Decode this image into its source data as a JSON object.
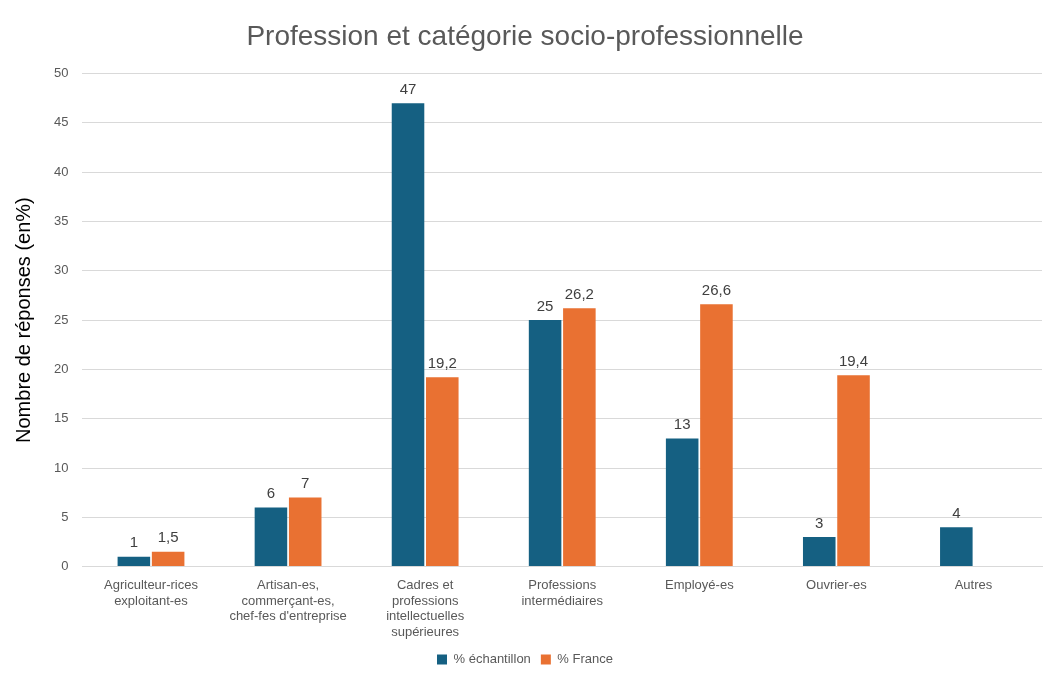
{
  "chart_data": {
    "type": "bar",
    "title": "Profession et catégorie socio-professionnelle",
    "ylabel": "Nombre de réponses (en%)",
    "categories": [
      "Agriculteur-rices exploitant-es",
      "Artisan-es, commerçant-es, chef-fes d'entreprise",
      "Cadres et professions intellectuelles supérieures",
      "Professions intermédiaires",
      "Employé-es",
      "Ouvrier-es",
      "Autres"
    ],
    "series": [
      {
        "name": "% échantillon",
        "color": "#156082",
        "values": [
          1,
          6,
          47,
          25,
          13,
          3,
          4
        ],
        "value_labels": [
          "1",
          "6",
          "47",
          "25",
          "13",
          "3",
          "4"
        ]
      },
      {
        "name": "% France",
        "color": "#e97132",
        "values": [
          1.5,
          7,
          19.2,
          26.2,
          26.6,
          19.4,
          null
        ],
        "value_labels": [
          "1,5",
          "7",
          "19,2",
          "26,2",
          "26,6",
          "19,4",
          null
        ]
      }
    ],
    "ylim": [
      0,
      50
    ],
    "yticks": [
      0,
      5,
      10,
      15,
      20,
      25,
      30,
      35,
      40,
      45,
      50
    ],
    "grid": "y",
    "legend": "bottom"
  }
}
